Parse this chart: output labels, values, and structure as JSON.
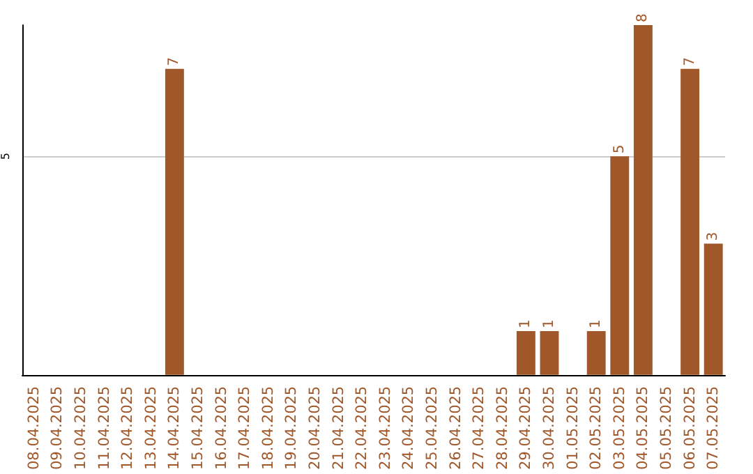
{
  "chart_data": {
    "type": "bar",
    "categories": [
      "08.04.2025",
      "09.04.2025",
      "10.04.2025",
      "11.04.2025",
      "12.04.2025",
      "13.04.2025",
      "14.04.2025",
      "15.04.2025",
      "16.04.2025",
      "17.04.2025",
      "18.04.2025",
      "19.04.2025",
      "20.04.2025",
      "21.04.2025",
      "22.04.2025",
      "23.04.2025",
      "24.04.2025",
      "25.04.2025",
      "26.04.2025",
      "27.04.2025",
      "28.04.2025",
      "29.04.2025",
      "30.04.2025",
      "01.05.2025",
      "02.05.2025",
      "03.05.2025",
      "04.05.2025",
      "05.05.2025",
      "06.05.2025",
      "07.05.2025"
    ],
    "values": [
      0,
      0,
      0,
      0,
      0,
      0,
      7,
      0,
      0,
      0,
      0,
      0,
      0,
      0,
      0,
      0,
      0,
      0,
      0,
      0,
      0,
      1,
      1,
      0,
      1,
      5,
      8,
      0,
      7,
      3
    ],
    "value_labels": [
      null,
      null,
      null,
      null,
      null,
      null,
      "7",
      null,
      null,
      null,
      null,
      null,
      null,
      null,
      null,
      null,
      null,
      null,
      null,
      null,
      null,
      "1",
      "1",
      null,
      "1",
      "5",
      "8",
      null,
      "7",
      "3"
    ],
    "color": "#a0572a",
    "ylim": [
      0,
      8
    ],
    "yticks": [
      5
    ],
    "grid": "y"
  }
}
